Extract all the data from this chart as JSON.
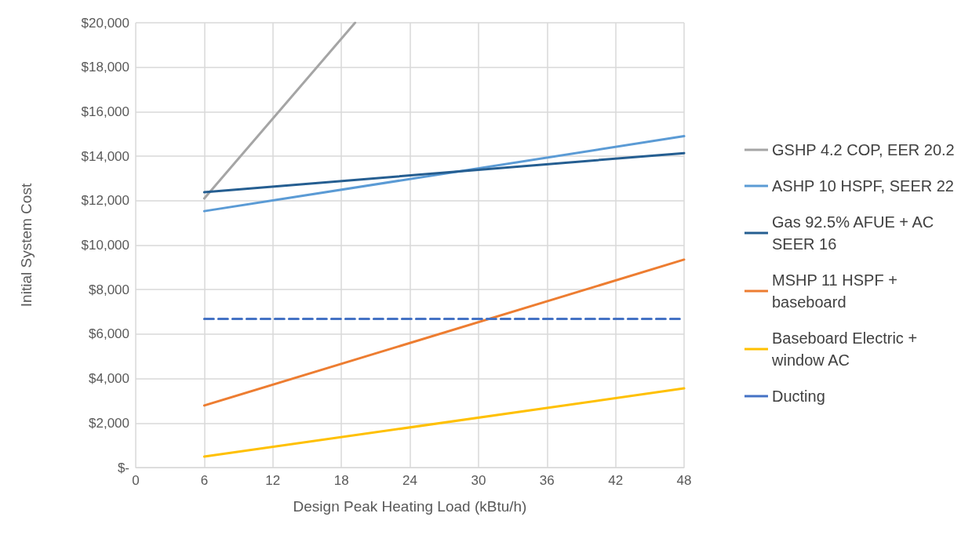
{
  "chart_data": {
    "type": "line",
    "xlabel": "Design Peak Heating Load (kBtu/h)",
    "ylabel": "Initial System Cost",
    "x": [
      6,
      48
    ],
    "series": [
      {
        "name": "GSHP 4.2 COP, EER 20.2",
        "color": "#a5a5a5",
        "x": [
          6,
          19.2
        ],
        "values": [
          12100,
          20000
        ]
      },
      {
        "name": "ASHP 10 HSPF, SEER 22",
        "color": "#5b9bd5",
        "values": [
          11530,
          14900
        ]
      },
      {
        "name": "Gas 92.5% AFUE + AC SEER 16",
        "color": "#255e91",
        "values": [
          12380,
          14140
        ]
      },
      {
        "name": "MSHP 11 HSPF + baseboard",
        "color": "#ed7d31",
        "values": [
          2790,
          9350
        ]
      },
      {
        "name": "Baseboard Electric + window AC",
        "color": "#ffc000",
        "values": [
          490,
          3560
        ]
      },
      {
        "name": "Ducting",
        "color": "#4472c4",
        "values": [
          6680,
          6680
        ],
        "line_style": "dashed"
      }
    ],
    "xlim": [
      0,
      48
    ],
    "xticks": [
      0,
      6,
      12,
      18,
      24,
      30,
      36,
      42,
      48
    ],
    "ylim": [
      0,
      20000
    ],
    "yticks": [
      {
        "value": 0,
        "label": "$-"
      },
      {
        "value": 2000,
        "label": "$2,000"
      },
      {
        "value": 4000,
        "label": "$4,000"
      },
      {
        "value": 6000,
        "label": "$6,000"
      },
      {
        "value": 8000,
        "label": "$8,000"
      },
      {
        "value": 10000,
        "label": "$10,000"
      },
      {
        "value": 12000,
        "label": "$12,000"
      },
      {
        "value": 14000,
        "label": "$14,000"
      },
      {
        "value": 16000,
        "label": "$16,000"
      },
      {
        "value": 18000,
        "label": "$18,000"
      },
      {
        "value": 20000,
        "label": "$20,000"
      }
    ],
    "grid": true,
    "legend": "right",
    "marker": "none",
    "line_style": "solid"
  }
}
